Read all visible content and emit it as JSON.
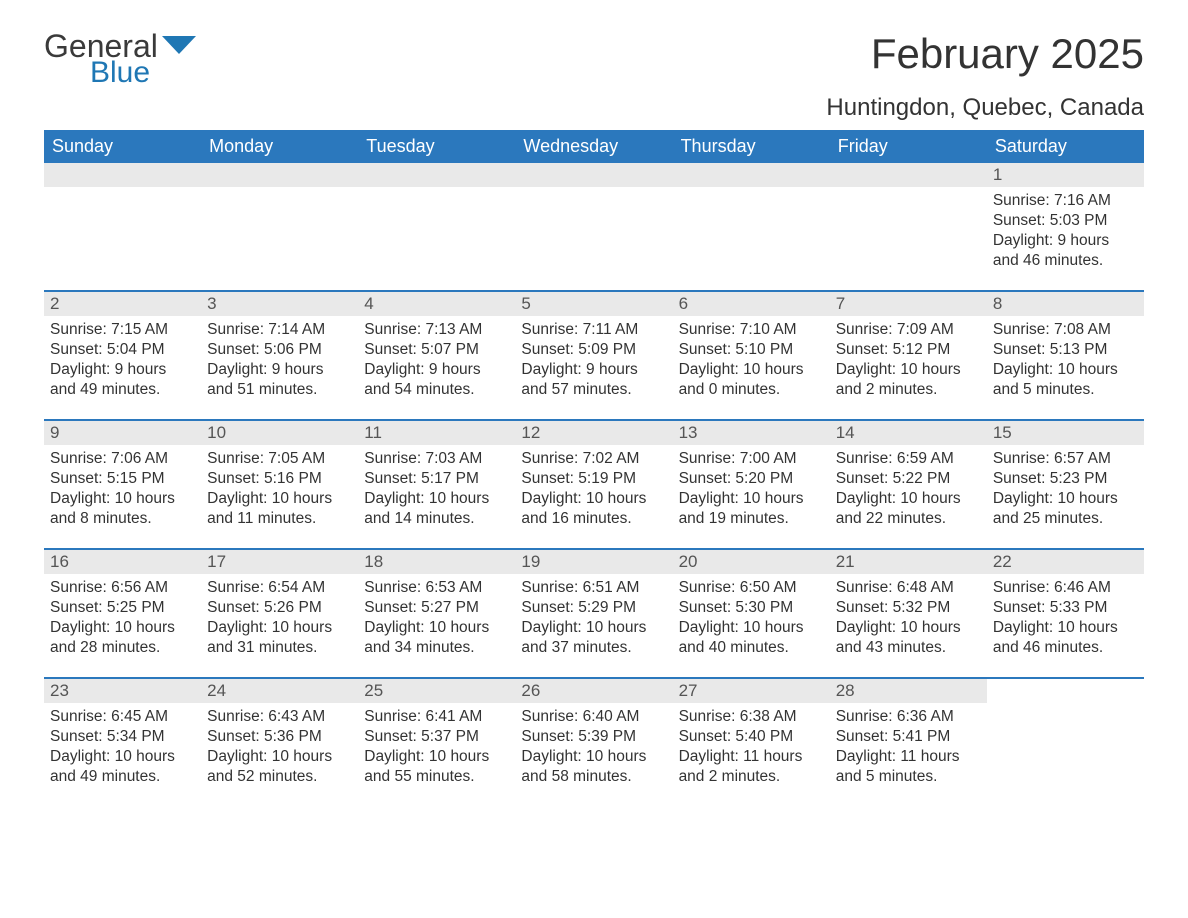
{
  "brand": {
    "word1": "General",
    "word2": "Blue",
    "flag_color": "#1f77b4"
  },
  "title": "February 2025",
  "location": "Huntingdon, Quebec, Canada",
  "colors": {
    "header_bg": "#2b78bd",
    "header_text": "#ffffff",
    "daynum_bg": "#e9e9e9",
    "body_text": "#333333",
    "rule": "#2b78bd"
  },
  "weekdays": [
    "Sunday",
    "Monday",
    "Tuesday",
    "Wednesday",
    "Thursday",
    "Friday",
    "Saturday"
  ],
  "labels": {
    "sunrise": "Sunrise:",
    "sunset": "Sunset:",
    "daylight": "Daylight:"
  },
  "weeks": [
    [
      null,
      null,
      null,
      null,
      null,
      null,
      {
        "n": "1",
        "sunrise": "7:16 AM",
        "sunset": "5:03 PM",
        "daylight": "9 hours and 46 minutes."
      }
    ],
    [
      {
        "n": "2",
        "sunrise": "7:15 AM",
        "sunset": "5:04 PM",
        "daylight": "9 hours and 49 minutes."
      },
      {
        "n": "3",
        "sunrise": "7:14 AM",
        "sunset": "5:06 PM",
        "daylight": "9 hours and 51 minutes."
      },
      {
        "n": "4",
        "sunrise": "7:13 AM",
        "sunset": "5:07 PM",
        "daylight": "9 hours and 54 minutes."
      },
      {
        "n": "5",
        "sunrise": "7:11 AM",
        "sunset": "5:09 PM",
        "daylight": "9 hours and 57 minutes."
      },
      {
        "n": "6",
        "sunrise": "7:10 AM",
        "sunset": "5:10 PM",
        "daylight": "10 hours and 0 minutes."
      },
      {
        "n": "7",
        "sunrise": "7:09 AM",
        "sunset": "5:12 PM",
        "daylight": "10 hours and 2 minutes."
      },
      {
        "n": "8",
        "sunrise": "7:08 AM",
        "sunset": "5:13 PM",
        "daylight": "10 hours and 5 minutes."
      }
    ],
    [
      {
        "n": "9",
        "sunrise": "7:06 AM",
        "sunset": "5:15 PM",
        "daylight": "10 hours and 8 minutes."
      },
      {
        "n": "10",
        "sunrise": "7:05 AM",
        "sunset": "5:16 PM",
        "daylight": "10 hours and 11 minutes."
      },
      {
        "n": "11",
        "sunrise": "7:03 AM",
        "sunset": "5:17 PM",
        "daylight": "10 hours and 14 minutes."
      },
      {
        "n": "12",
        "sunrise": "7:02 AM",
        "sunset": "5:19 PM",
        "daylight": "10 hours and 16 minutes."
      },
      {
        "n": "13",
        "sunrise": "7:00 AM",
        "sunset": "5:20 PM",
        "daylight": "10 hours and 19 minutes."
      },
      {
        "n": "14",
        "sunrise": "6:59 AM",
        "sunset": "5:22 PM",
        "daylight": "10 hours and 22 minutes."
      },
      {
        "n": "15",
        "sunrise": "6:57 AM",
        "sunset": "5:23 PM",
        "daylight": "10 hours and 25 minutes."
      }
    ],
    [
      {
        "n": "16",
        "sunrise": "6:56 AM",
        "sunset": "5:25 PM",
        "daylight": "10 hours and 28 minutes."
      },
      {
        "n": "17",
        "sunrise": "6:54 AM",
        "sunset": "5:26 PM",
        "daylight": "10 hours and 31 minutes."
      },
      {
        "n": "18",
        "sunrise": "6:53 AM",
        "sunset": "5:27 PM",
        "daylight": "10 hours and 34 minutes."
      },
      {
        "n": "19",
        "sunrise": "6:51 AM",
        "sunset": "5:29 PM",
        "daylight": "10 hours and 37 minutes."
      },
      {
        "n": "20",
        "sunrise": "6:50 AM",
        "sunset": "5:30 PM",
        "daylight": "10 hours and 40 minutes."
      },
      {
        "n": "21",
        "sunrise": "6:48 AM",
        "sunset": "5:32 PM",
        "daylight": "10 hours and 43 minutes."
      },
      {
        "n": "22",
        "sunrise": "6:46 AM",
        "sunset": "5:33 PM",
        "daylight": "10 hours and 46 minutes."
      }
    ],
    [
      {
        "n": "23",
        "sunrise": "6:45 AM",
        "sunset": "5:34 PM",
        "daylight": "10 hours and 49 minutes."
      },
      {
        "n": "24",
        "sunrise": "6:43 AM",
        "sunset": "5:36 PM",
        "daylight": "10 hours and 52 minutes."
      },
      {
        "n": "25",
        "sunrise": "6:41 AM",
        "sunset": "5:37 PM",
        "daylight": "10 hours and 55 minutes."
      },
      {
        "n": "26",
        "sunrise": "6:40 AM",
        "sunset": "5:39 PM",
        "daylight": "10 hours and 58 minutes."
      },
      {
        "n": "27",
        "sunrise": "6:38 AM",
        "sunset": "5:40 PM",
        "daylight": "11 hours and 2 minutes."
      },
      {
        "n": "28",
        "sunrise": "6:36 AM",
        "sunset": "5:41 PM",
        "daylight": "11 hours and 5 minutes."
      },
      null
    ]
  ]
}
